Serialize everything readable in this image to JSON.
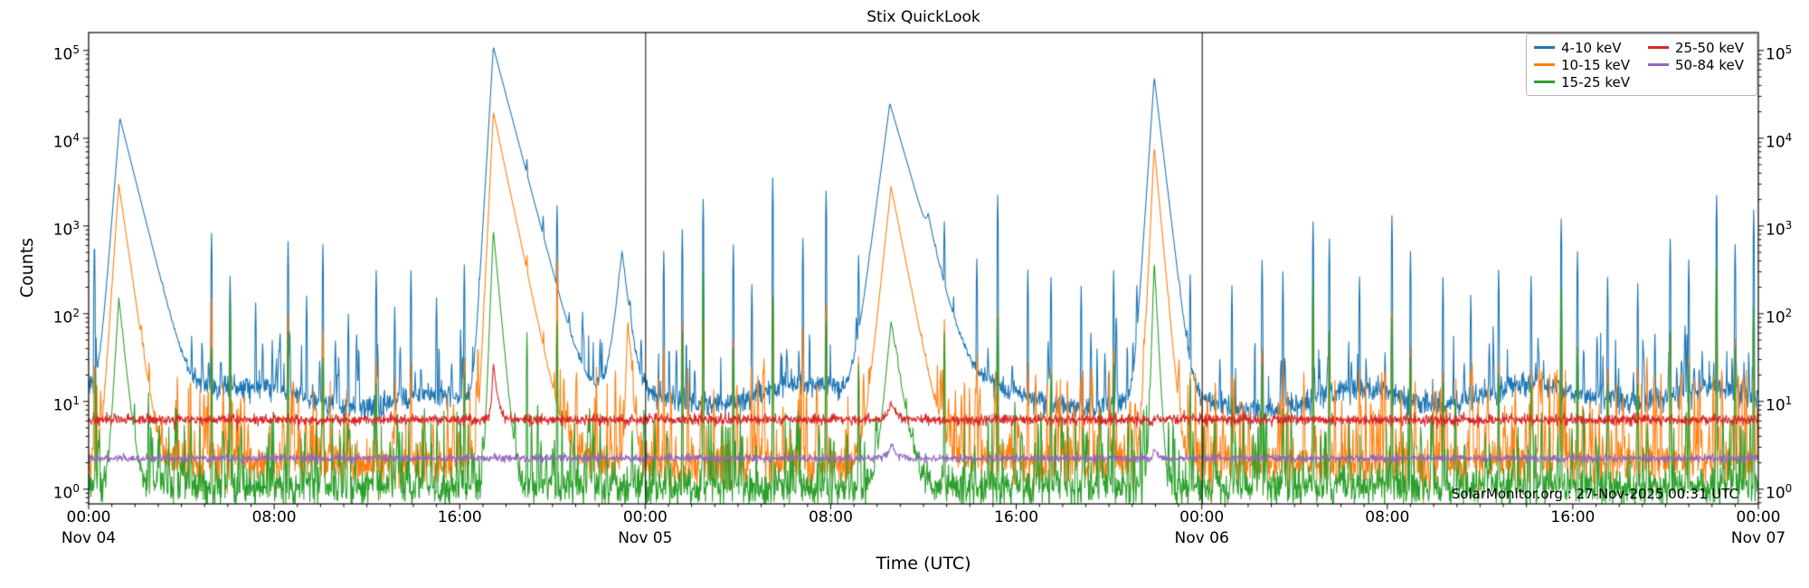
{
  "title": "Stix QuickLook",
  "axes": {
    "xlabel": "Time (UTC)",
    "ylabel": "Counts"
  },
  "watermark": "SolarMonitor.org : 27-Nov-2025 00:31 UTC",
  "legend": {
    "items": [
      {
        "label": "4-10 keV",
        "color": "#1f77b4"
      },
      {
        "label": "10-15 keV",
        "color": "#ff7f0e"
      },
      {
        "label": "15-25 keV",
        "color": "#2ca02c"
      },
      {
        "label": "25-50 keV",
        "color": "#d62728"
      },
      {
        "label": "50-84 keV",
        "color": "#9467bd"
      }
    ]
  },
  "chart_data": {
    "type": "line",
    "title": "Stix QuickLook",
    "xlabel": "Time (UTC)",
    "ylabel": "Counts",
    "x_start": "Nov 04 00:00 UTC",
    "x_range_hours": [
      0,
      72
    ],
    "y_scale": "log",
    "ylim": [
      0.68,
      160000
    ],
    "y_ticks": [
      1,
      10,
      100,
      1000,
      10000,
      100000
    ],
    "x_major_ticks": [
      {
        "t": 0,
        "label": "00:00",
        "day": "Nov 04"
      },
      {
        "t": 8,
        "label": "08:00"
      },
      {
        "t": 16,
        "label": "16:00"
      },
      {
        "t": 24,
        "label": "00:00",
        "day": "Nov 05"
      },
      {
        "t": 32,
        "label": "08:00"
      },
      {
        "t": 40,
        "label": "16:00"
      },
      {
        "t": 48,
        "label": "00:00",
        "day": "Nov 06"
      },
      {
        "t": 56,
        "label": "08:00"
      },
      {
        "t": 64,
        "label": "16:00"
      },
      {
        "t": 72,
        "label": "00:00",
        "day": "Nov 07"
      }
    ],
    "x_minor_tick_step_hours": 1,
    "day_boundary_lines_hours": [
      24,
      48
    ],
    "legend_position": "upper right",
    "grid": false,
    "series": [
      {
        "name": "4-10 keV",
        "color": "#1f77b4",
        "baseline": 11,
        "sigma": 0.07,
        "wander": true,
        "micro": {
          "rate": 2.2,
          "amp": [
            12,
            60
          ]
        },
        "flares": [
          {
            "t": 1.35,
            "peak": 17000,
            "rise": 0.3,
            "decay": 0.95
          },
          {
            "t": 17.45,
            "peak": 110000,
            "rise": 0.22,
            "decay": 1.0
          },
          {
            "t": 23.0,
            "peak": 500,
            "rise": 0.4,
            "decay": 0.45
          },
          {
            "t": 34.55,
            "peak": 25000,
            "rise": 0.5,
            "decay": 1.1
          },
          {
            "t": 36.2,
            "peak": 600,
            "rise": 0.25,
            "decay": 0.5
          },
          {
            "t": 45.95,
            "peak": 50000,
            "rise": 0.25,
            "decay": 0.45
          }
        ],
        "spikes": [
          [
            0.25,
            700
          ],
          [
            5.3,
            800
          ],
          [
            6.1,
            250
          ],
          [
            7.2,
            120
          ],
          [
            8.6,
            650
          ],
          [
            9.4,
            150
          ],
          [
            10.1,
            600
          ],
          [
            11.2,
            90
          ],
          [
            12.4,
            300
          ],
          [
            13.2,
            110
          ],
          [
            13.9,
            300
          ],
          [
            15.0,
            140
          ],
          [
            16.2,
            350
          ],
          [
            18.9,
            1800
          ],
          [
            19.6,
            500
          ],
          [
            20.2,
            1500
          ],
          [
            21.3,
            80
          ],
          [
            24.8,
            500
          ],
          [
            25.6,
            900
          ],
          [
            26.5,
            2000
          ],
          [
            27.8,
            600
          ],
          [
            28.6,
            200
          ],
          [
            29.5,
            3500
          ],
          [
            30.8,
            700
          ],
          [
            31.8,
            2500
          ],
          [
            33.2,
            400
          ],
          [
            36.9,
            900
          ],
          [
            38.3,
            400
          ],
          [
            39.2,
            2200
          ],
          [
            40.5,
            300
          ],
          [
            41.5,
            250
          ],
          [
            42.8,
            200
          ],
          [
            44.2,
            300
          ],
          [
            45.2,
            150
          ],
          [
            47.5,
            250
          ],
          [
            49.3,
            200
          ],
          [
            50.6,
            400
          ],
          [
            51.5,
            250
          ],
          [
            52.8,
            1100
          ],
          [
            53.5,
            700
          ],
          [
            54.8,
            250
          ],
          [
            56.2,
            1300
          ],
          [
            57.0,
            500
          ],
          [
            58.4,
            250
          ],
          [
            59.6,
            150
          ],
          [
            60.8,
            300
          ],
          [
            62.2,
            250
          ],
          [
            63.5,
            1200
          ],
          [
            64.2,
            500
          ],
          [
            65.5,
            250
          ],
          [
            66.8,
            200
          ],
          [
            68.2,
            700
          ],
          [
            69.0,
            400
          ],
          [
            70.2,
            2200
          ],
          [
            71.0,
            600
          ],
          [
            71.8,
            1500
          ]
        ]
      },
      {
        "name": "10-15 keV",
        "color": "#ff7f0e",
        "baseline": 2.0,
        "sigma": 0.13,
        "wander": false,
        "micro": {
          "rate": 5,
          "amp": [
            3,
            25
          ]
        },
        "flares": [
          {
            "t": 1.3,
            "peak": 3000,
            "rise": 0.25,
            "decay": 0.55
          },
          {
            "t": 17.45,
            "peak": 20000,
            "rise": 0.18,
            "decay": 0.8
          },
          {
            "t": 23.25,
            "peak": 85,
            "rise": 0.12,
            "decay": 0.25
          },
          {
            "t": 34.6,
            "peak": 2800,
            "rise": 0.4,
            "decay": 0.75
          },
          {
            "t": 45.95,
            "peak": 8000,
            "rise": 0.18,
            "decay": 0.35
          }
        ],
        "spikes": [
          [
            0.25,
            30
          ],
          [
            5.3,
            150
          ],
          [
            6.1,
            30
          ],
          [
            8.6,
            80
          ],
          [
            10.1,
            60
          ],
          [
            12.4,
            30
          ],
          [
            13.9,
            25
          ],
          [
            16.2,
            30
          ],
          [
            18.9,
            150
          ],
          [
            20.2,
            400
          ],
          [
            24.8,
            40
          ],
          [
            25.6,
            80
          ],
          [
            26.5,
            120
          ],
          [
            27.8,
            50
          ],
          [
            29.5,
            150
          ],
          [
            30.8,
            60
          ],
          [
            31.8,
            120
          ],
          [
            33.2,
            30
          ],
          [
            36.9,
            80
          ],
          [
            38.3,
            30
          ],
          [
            39.2,
            100
          ],
          [
            40.5,
            25
          ],
          [
            41.5,
            20
          ],
          [
            42.8,
            15
          ],
          [
            44.2,
            25
          ],
          [
            47.5,
            20
          ],
          [
            49.3,
            15
          ],
          [
            50.6,
            30
          ],
          [
            51.5,
            20
          ],
          [
            52.8,
            120
          ],
          [
            53.5,
            60
          ],
          [
            54.8,
            20
          ],
          [
            56.2,
            100
          ],
          [
            57.0,
            40
          ],
          [
            58.4,
            20
          ],
          [
            60.8,
            25
          ],
          [
            62.2,
            20
          ],
          [
            63.5,
            150
          ],
          [
            64.2,
            40
          ],
          [
            65.5,
            20
          ],
          [
            66.8,
            15
          ],
          [
            68.2,
            60
          ],
          [
            69.0,
            30
          ],
          [
            70.2,
            250
          ],
          [
            71.0,
            50
          ],
          [
            71.8,
            100
          ]
        ]
      },
      {
        "name": "15-25 keV",
        "color": "#2ca02c",
        "baseline": 1.05,
        "sigma": 0.11,
        "wander": false,
        "micro": {
          "rate": 4,
          "amp": [
            1.5,
            8
          ]
        },
        "flares": [
          {
            "t": 1.3,
            "peak": 150,
            "rise": 0.22,
            "decay": 0.4
          },
          {
            "t": 17.45,
            "peak": 900,
            "rise": 0.15,
            "decay": 0.35
          },
          {
            "t": 34.6,
            "peak": 80,
            "rise": 0.35,
            "decay": 0.6
          },
          {
            "t": 45.95,
            "peak": 400,
            "rise": 0.12,
            "decay": 0.2
          }
        ],
        "spikes": [
          [
            0.3,
            20
          ],
          [
            5.3,
            40
          ],
          [
            6.1,
            150
          ],
          [
            8.6,
            60
          ],
          [
            10.1,
            30
          ],
          [
            12.4,
            15
          ],
          [
            16.2,
            20
          ],
          [
            18.9,
            60
          ],
          [
            20.2,
            80
          ],
          [
            25.6,
            60
          ],
          [
            26.5,
            300
          ],
          [
            27.8,
            40
          ],
          [
            29.5,
            150
          ],
          [
            31.8,
            80
          ],
          [
            33.2,
            25
          ],
          [
            36.9,
            60
          ],
          [
            39.2,
            90
          ],
          [
            41.5,
            20
          ],
          [
            44.2,
            25
          ],
          [
            47.5,
            15
          ],
          [
            49.3,
            10
          ],
          [
            50.6,
            25
          ],
          [
            52.8,
            250
          ],
          [
            53.5,
            60
          ],
          [
            56.2,
            90
          ],
          [
            57.0,
            30
          ],
          [
            58.4,
            15
          ],
          [
            60.8,
            20
          ],
          [
            62.2,
            15
          ],
          [
            63.5,
            200
          ],
          [
            64.2,
            40
          ],
          [
            65.5,
            15
          ],
          [
            66.8,
            15
          ],
          [
            68.2,
            60
          ],
          [
            69.0,
            25
          ],
          [
            70.2,
            350
          ],
          [
            71.0,
            40
          ],
          [
            71.8,
            120
          ]
        ]
      },
      {
        "name": "25-50 keV",
        "color": "#d62728",
        "baseline": 6.2,
        "sigma": 0.03,
        "wander": false,
        "flares": [
          {
            "t": 17.45,
            "peak": 22,
            "rise": 0.12,
            "decay": 0.3
          },
          {
            "t": 34.6,
            "peak": 3.5,
            "rise": 0.3,
            "decay": 0.5
          }
        ],
        "spikes": []
      },
      {
        "name": "50-84 keV",
        "color": "#9467bd",
        "baseline": 2.25,
        "sigma": 0.022,
        "wander": false,
        "flares": [
          {
            "t": 34.6,
            "peak": 1.0,
            "rise": 0.3,
            "decay": 0.5
          },
          {
            "t": 45.95,
            "peak": 0.7,
            "rise": 0.1,
            "decay": 0.2
          }
        ],
        "spikes": []
      }
    ]
  }
}
